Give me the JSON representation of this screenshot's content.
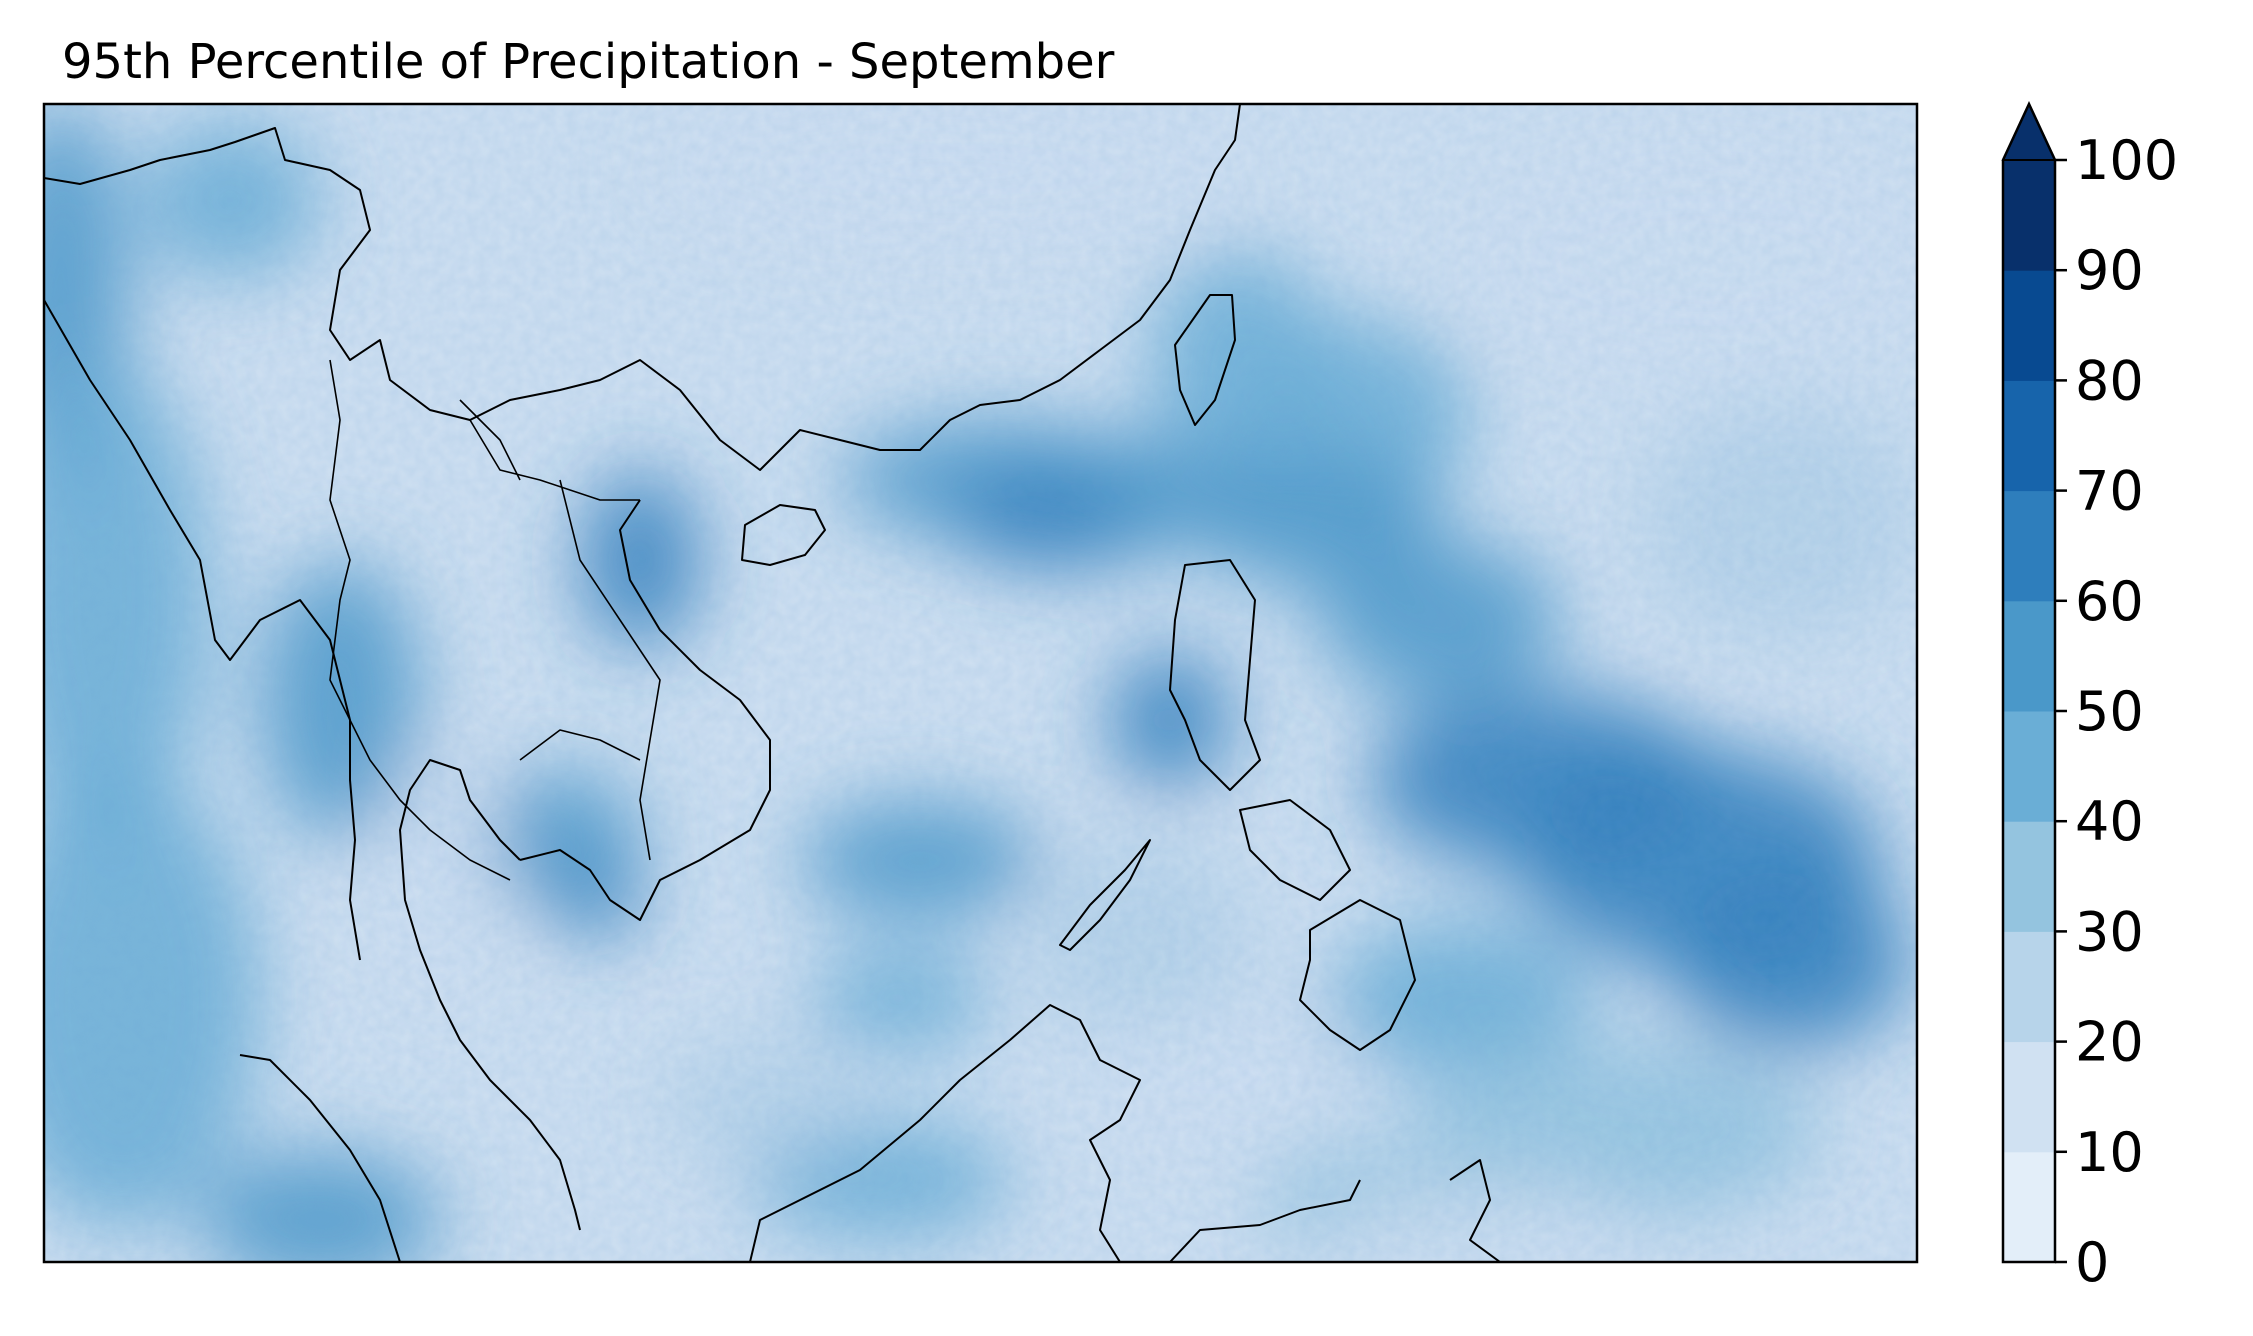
{
  "title": "95th Percentile of Precipitation -  September",
  "colorbar": {
    "ticks": [
      "0",
      "10",
      "20",
      "30",
      "40",
      "50",
      "60",
      "70",
      "80",
      "90",
      "100"
    ],
    "levels": [
      0,
      10,
      20,
      30,
      40,
      50,
      60,
      70,
      80,
      90,
      100
    ],
    "extend": "max",
    "colors": [
      "#e3eef9",
      "#d0e1f2",
      "#b7d4ea",
      "#94c4df",
      "#6aaed6",
      "#4a98c9",
      "#2e7ebc",
      "#1764ab",
      "#084a91",
      "#08306b"
    ]
  },
  "map": {
    "region": "Southeast Asia / Western Pacific",
    "colormap": "Blues",
    "coastlines": "black",
    "borders": "black"
  }
}
